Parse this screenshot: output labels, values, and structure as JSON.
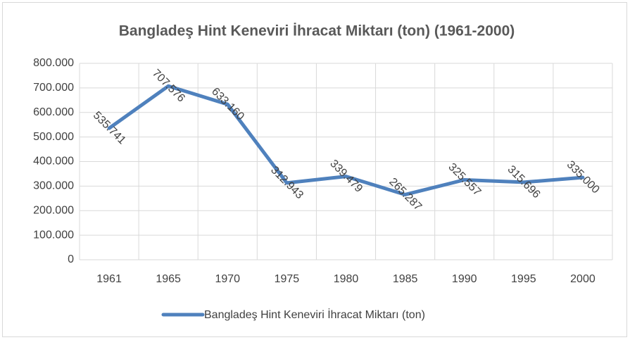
{
  "chart_data": {
    "type": "line",
    "title": "Bangladeş Hint Keneviri İhracat Miktarı (ton) (1961-2000)",
    "categories": [
      "1961",
      "1965",
      "1970",
      "1975",
      "1980",
      "1985",
      "1990",
      "1995",
      "2000"
    ],
    "series": [
      {
        "name": "Bangladeş Hint Keneviri İhracat Miktarı (ton)",
        "color": "#4f81bd",
        "values": [
          535741,
          707576,
          633160,
          312943,
          339479,
          265287,
          325557,
          315696,
          335000
        ],
        "value_labels": [
          "535.741",
          "707.576",
          "633.160",
          "312.943",
          "339.479",
          "265.287",
          "325.557",
          "315.696",
          "335.000"
        ]
      }
    ],
    "ylim": [
      0,
      800000
    ],
    "yticks": [
      0,
      {
        "value": 100000,
        "label": "100.000"
      },
      {
        "value": 200000,
        "label": "200.000"
      },
      {
        "value": 300000,
        "label": "300.000"
      },
      {
        "value": 400000,
        "label": "400.000"
      },
      {
        "value": 500000,
        "label": "500.000"
      },
      {
        "value": 600000,
        "label": "600.000"
      },
      {
        "value": 700000,
        "label": "700.000"
      },
      {
        "value": 800000,
        "label": "800.000"
      }
    ],
    "grid": true,
    "legend": "bottom"
  }
}
